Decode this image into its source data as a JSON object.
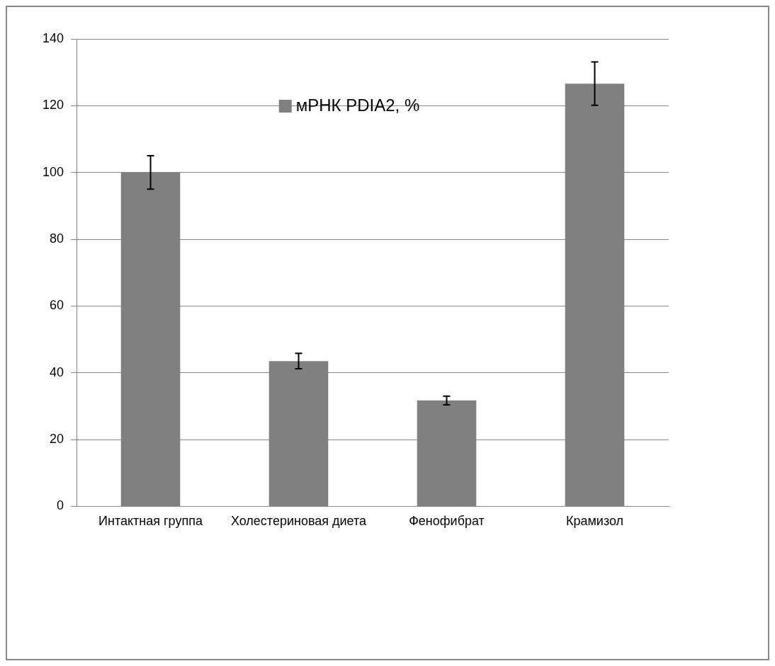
{
  "chart_data": {
    "type": "bar",
    "categories": [
      "Интактная группа",
      "Холестериновая диета",
      "Фенофибрат",
      "Крамизол"
    ],
    "series": [
      {
        "name": "мРНК PDIA2, %",
        "color": "#808080",
        "values": [
          100,
          43.5,
          31.7,
          126.6
        ],
        "errors": [
          5,
          2.3,
          1.3,
          6.5
        ]
      }
    ],
    "ylim": [
      0,
      140
    ],
    "yticks": [
      0,
      20,
      40,
      60,
      80,
      100,
      120,
      140
    ],
    "grid": "y",
    "legend": "top"
  }
}
